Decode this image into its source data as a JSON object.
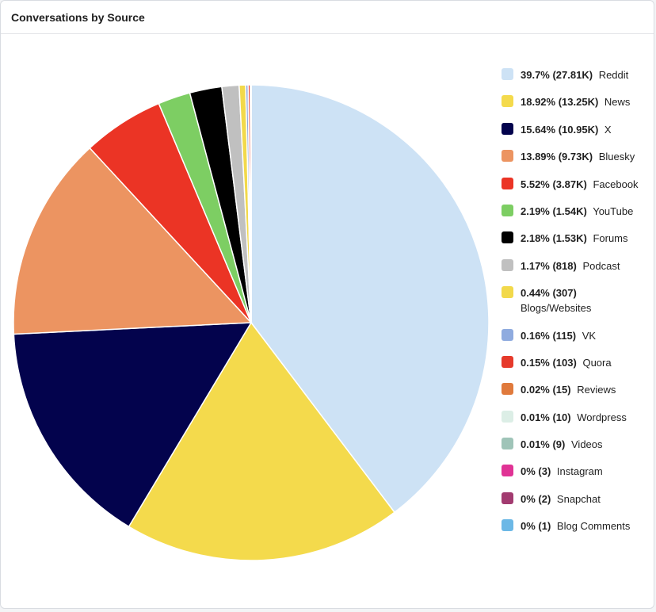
{
  "header": {
    "title": "Conversations by Source"
  },
  "chart_data": {
    "type": "pie",
    "title": "Conversations by Source",
    "legend_position": "right",
    "slices": [
      {
        "label": "Reddit",
        "value": 27810,
        "percent_label": "39.7% (27.81K)",
        "color": "#cde2f5"
      },
      {
        "label": "News",
        "value": 13250,
        "percent_label": "18.92% (13.25K)",
        "color": "#f4da4c"
      },
      {
        "label": "X",
        "value": 10950,
        "percent_label": "15.64% (10.95K)",
        "color": "#03034d"
      },
      {
        "label": "Bluesky",
        "value": 9730,
        "percent_label": "13.89% (9.73K)",
        "color": "#ec9461"
      },
      {
        "label": "Facebook",
        "value": 3870,
        "percent_label": "5.52% (3.87K)",
        "color": "#eb3425"
      },
      {
        "label": "YouTube",
        "value": 1540,
        "percent_label": "2.19% (1.54K)",
        "color": "#7dce63"
      },
      {
        "label": "Forums",
        "value": 1530,
        "percent_label": "2.18% (1.53K)",
        "color": "#000000"
      },
      {
        "label": "Podcast",
        "value": 818,
        "percent_label": "1.17% (818)",
        "color": "#c0c0c0"
      },
      {
        "label": "Blogs/Websites",
        "value": 307,
        "percent_label": "0.44% (307)",
        "color": "#f2d94b"
      },
      {
        "label": "VK",
        "value": 115,
        "percent_label": "0.16% (115)",
        "color": "#8fabdf"
      },
      {
        "label": "Quora",
        "value": 103,
        "percent_label": "0.15% (103)",
        "color": "#e63a2b"
      },
      {
        "label": "Reviews",
        "value": 15,
        "percent_label": "0.02% (15)",
        "color": "#e07a3c"
      },
      {
        "label": "Wordpress",
        "value": 10,
        "percent_label": "0.01% (10)",
        "color": "#dceee6"
      },
      {
        "label": "Videos",
        "value": 9,
        "percent_label": "0.01% (9)",
        "color": "#9fc4b8"
      },
      {
        "label": "Instagram",
        "value": 3,
        "percent_label": "0% (3)",
        "color": "#e03395"
      },
      {
        "label": "Snapchat",
        "value": 2,
        "percent_label": "0% (2)",
        "color": "#a23b70"
      },
      {
        "label": "Blog Comments",
        "value": 1,
        "percent_label": "0% (1)",
        "color": "#6cb8e6"
      }
    ]
  }
}
